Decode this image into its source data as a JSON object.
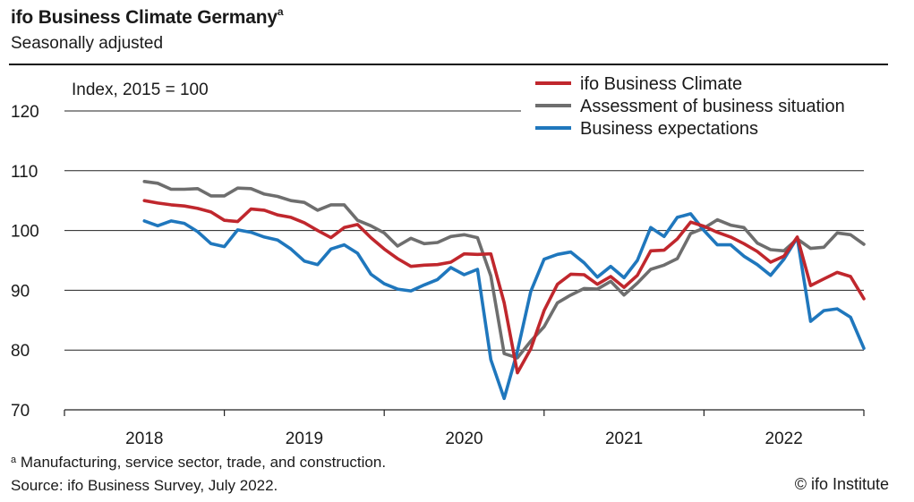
{
  "header": {
    "title": "ifo Business Climate Germany",
    "title_marker": "a",
    "subtitle": "Seasonally adjusted"
  },
  "footer": {
    "note_marker": "a",
    "note": "Manufacturing, service sector, trade, and construction.",
    "source": "Source: ifo Business Survey, July 2022.",
    "credit": "© ifo Institute"
  },
  "chart_data": {
    "type": "line",
    "unit_label": "Index, 2015 = 100",
    "ylim": [
      70,
      120
    ],
    "yticks": [
      70,
      80,
      90,
      100,
      110,
      120
    ],
    "xlim": [
      2017.5,
      2022.5
    ],
    "year_labels": [
      "2018",
      "2019",
      "2020",
      "2021",
      "2022"
    ],
    "grid": true,
    "legend_position": "top-right",
    "series": [
      {
        "name": "ifo Business Climate",
        "color": "#c0272d",
        "values": [
          105.0,
          104.6,
          104.3,
          104.1,
          103.7,
          103.1,
          101.7,
          101.5,
          103.6,
          103.4,
          102.6,
          102.2,
          101.3,
          100.0,
          98.8,
          100.5,
          101.0,
          98.8,
          96.9,
          95.3,
          94.0,
          94.2,
          94.3,
          94.7,
          96.1,
          96.0,
          96.1,
          87.9,
          76.2,
          80.2,
          86.6,
          91.0,
          92.7,
          92.6,
          91.0,
          92.3,
          90.5,
          92.5,
          96.6,
          96.7,
          98.6,
          101.4,
          100.7,
          99.7,
          98.9,
          97.8,
          96.5,
          94.7,
          95.7,
          98.9,
          90.8,
          91.9,
          93.0,
          92.3,
          88.6
        ]
      },
      {
        "name": "Assessment of business situation",
        "color": "#6e6e6e",
        "values": [
          108.2,
          107.9,
          106.9,
          106.9,
          107.0,
          105.8,
          105.8,
          107.1,
          107.0,
          106.1,
          105.7,
          105.0,
          104.7,
          103.4,
          104.3,
          104.3,
          101.7,
          100.8,
          99.6,
          97.4,
          98.7,
          97.8,
          98.0,
          99.0,
          99.3,
          98.8,
          92.4,
          79.4,
          78.7,
          81.5,
          83.9,
          87.9,
          89.2,
          90.3,
          90.2,
          91.5,
          89.2,
          91.2,
          93.5,
          94.2,
          95.3,
          99.5,
          100.4,
          101.8,
          100.9,
          100.5,
          97.9,
          96.8,
          96.6,
          98.6,
          97.0,
          97.2,
          99.6,
          99.3,
          97.7
        ]
      },
      {
        "name": "Business expectations",
        "color": "#1f77bd",
        "values": [
          101.6,
          100.8,
          101.6,
          101.2,
          99.8,
          97.8,
          97.3,
          100.1,
          99.7,
          98.9,
          98.4,
          96.9,
          94.9,
          94.3,
          96.9,
          97.6,
          96.2,
          92.7,
          91.1,
          90.2,
          89.9,
          90.9,
          91.8,
          93.8,
          92.6,
          93.5,
          78.4,
          71.9,
          79.8,
          89.8,
          95.2,
          96.0,
          96.4,
          94.6,
          92.2,
          94.0,
          92.1,
          95.0,
          100.5,
          99.0,
          102.2,
          102.8,
          100.0,
          97.6,
          97.6,
          95.7,
          94.3,
          92.5,
          95.2,
          98.8,
          84.8,
          86.6,
          86.9,
          85.5,
          80.3
        ]
      }
    ]
  }
}
